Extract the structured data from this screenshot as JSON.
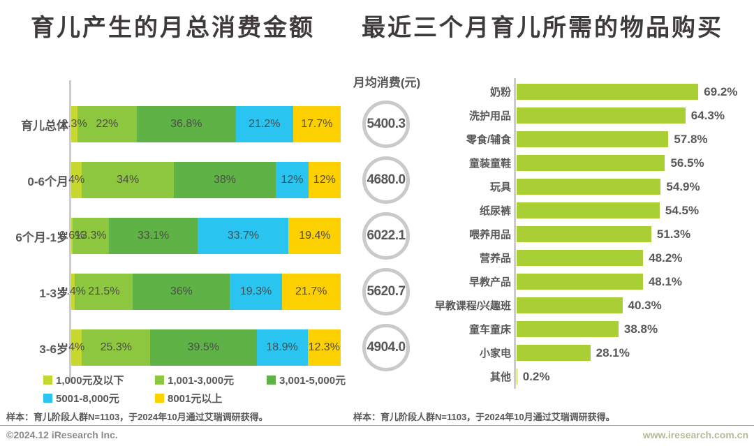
{
  "titles": {
    "left": "育儿产生的月总消费金额",
    "right": "最近三个月育儿所需的物品购买"
  },
  "colors": {
    "title_text": "#3e3a39",
    "body_text": "#595757",
    "axis": "#cccccc",
    "circle_border": "#c9caca",
    "segment_colors": [
      "#c6d72f",
      "#8dc63f",
      "#5fb246",
      "#29c4f0",
      "#fdd000"
    ],
    "right_bar": "#a9cf35"
  },
  "chart_data": [
    {
      "type": "bar",
      "stacked": true,
      "orientation": "horizontal",
      "title": "育儿产生的月总消费金额",
      "categories": [
        "育儿总体",
        "0-6个月",
        "6个月-1岁",
        "1-3岁",
        "3-6岁"
      ],
      "series": [
        {
          "name": "1,000元及以下",
          "color": "#c6d72f",
          "values": [
            2.3,
            4,
            0.6,
            1.4,
            4
          ]
        },
        {
          "name": "1,001-3,000元",
          "color": "#8dc63f",
          "values": [
            22,
            34,
            13.3,
            21.5,
            25.3
          ]
        },
        {
          "name": "3,001-5,000元",
          "color": "#5fb246",
          "values": [
            36.8,
            38,
            33.1,
            36,
            39.5
          ]
        },
        {
          "name": "5001-8,000元",
          "color": "#29c4f0",
          "values": [
            21.2,
            12,
            33.7,
            19.3,
            18.9
          ]
        },
        {
          "name": "8001元以上",
          "color": "#fdd000",
          "values": [
            17.7,
            12,
            19.4,
            21.7,
            12.3
          ]
        }
      ],
      "labels": [
        [
          "2.3%",
          "22%",
          "36.8%",
          "21.2%",
          "17.7%"
        ],
        [
          "4%",
          "34%",
          "38%",
          "12%",
          "12%"
        ],
        [
          "0.6%",
          "13.3%",
          "33.1%",
          "33.7%",
          "19.4%"
        ],
        [
          "1.4%",
          "21.5%",
          "36%",
          "19.3%",
          "21.7%"
        ],
        [
          "4%",
          "25.3%",
          "39.5%",
          "18.9%",
          "12.3%"
        ]
      ],
      "avg_column": {
        "header": "月均消费(元)",
        "values": [
          "5400.3",
          "4680.0",
          "6022.1",
          "5620.7",
          "4904.0"
        ]
      },
      "xlim": [
        0,
        100
      ],
      "legend_position": "bottom",
      "note": "样本：育儿阶段人群N=1103，于2024年10月通过艾瑞调研获得。"
    },
    {
      "type": "bar",
      "stacked": false,
      "orientation": "horizontal",
      "title": "最近三个月育儿所需的物品购买",
      "categories": [
        "奶粉",
        "洗护用品",
        "零食/辅食",
        "童装童鞋",
        "玩具",
        "纸尿裤",
        "喂养用品",
        "营养品",
        "早教产品",
        "早教课程/兴趣班",
        "童车童床",
        "小家电",
        "其他"
      ],
      "values": [
        69.2,
        64.3,
        57.8,
        56.5,
        54.9,
        54.5,
        51.3,
        48.2,
        48.1,
        40.3,
        38.8,
        28.1,
        0.2
      ],
      "labels": [
        "69.2%",
        "64.3%",
        "57.8%",
        "56.5%",
        "54.9%",
        "54.5%",
        "51.3%",
        "48.2%",
        "48.1%",
        "40.3%",
        "38.8%",
        "28.1%",
        "0.2%"
      ],
      "bar_color": "#a9cf35",
      "xlim": [
        0,
        100
      ],
      "note": "样本：育儿阶段人群N=1103，于2024年10月通过艾瑞调研获得。"
    }
  ],
  "footer": {
    "left": "©2024.12 iResearch Inc.",
    "right": "www.iresearch.com.cn"
  }
}
